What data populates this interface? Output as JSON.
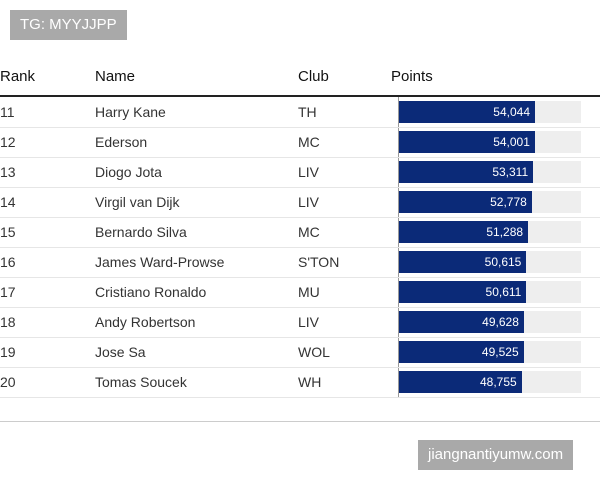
{
  "watermark_top": "TG: MYYJJPP",
  "watermark_bottom": "jiangnantiyumw.com",
  "table": {
    "columns": [
      "Rank",
      "Name",
      "Club",
      "Points"
    ],
    "rows": [
      {
        "rank": "11",
        "name": "Harry Kane",
        "club": "TH",
        "points": {
          "value": 54044,
          "label": "54,044"
        }
      },
      {
        "rank": "12",
        "name": "Ederson",
        "club": "MC",
        "points": {
          "value": 54001,
          "label": "54,001"
        }
      },
      {
        "rank": "13",
        "name": "Diogo Jota",
        "club": "LIV",
        "points": {
          "value": 53311,
          "label": "53,311"
        }
      },
      {
        "rank": "14",
        "name": "Virgil van Dijk",
        "club": "LIV",
        "points": {
          "value": 52778,
          "label": "52,778"
        }
      },
      {
        "rank": "15",
        "name": "Bernardo Silva",
        "club": "MC",
        "points": {
          "value": 51288,
          "label": "51,288"
        }
      },
      {
        "rank": "16",
        "name": "James Ward-Prowse",
        "club": "S'TON",
        "points": {
          "value": 50615,
          "label": "50,615"
        }
      },
      {
        "rank": "17",
        "name": "Cristiano Ronaldo",
        "club": "MU",
        "points": {
          "value": 50611,
          "label": "50,611"
        }
      },
      {
        "rank": "18",
        "name": "Andy Robertson",
        "club": "LIV",
        "points": {
          "value": 49628,
          "label": "49,628"
        }
      },
      {
        "rank": "19",
        "name": "Jose Sa",
        "club": "WOL",
        "points": {
          "value": 49525,
          "label": "49,525"
        }
      },
      {
        "rank": "20",
        "name": "Tomas Soucek",
        "club": "WH",
        "points": {
          "value": 48755,
          "label": "48,755"
        }
      }
    ]
  }
}
